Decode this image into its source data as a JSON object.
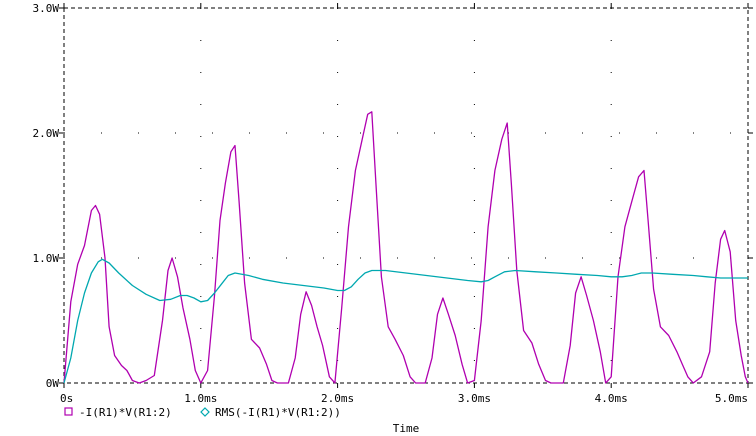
{
  "chart_data": {
    "type": "line",
    "xlabel": "Time",
    "ylabel": "",
    "xlim": [
      0,
      5.0
    ],
    "ylim": [
      0,
      3.0
    ],
    "x_unit": "ms",
    "y_unit": "W",
    "x_ticks": [
      {
        "value": 0,
        "label": "0s"
      },
      {
        "value": 1.0,
        "label": "1.0ms"
      },
      {
        "value": 2.0,
        "label": "2.0ms"
      },
      {
        "value": 3.0,
        "label": "3.0ms"
      },
      {
        "value": 4.0,
        "label": "4.0ms"
      },
      {
        "value": 5.0,
        "label": "5.0ms"
      }
    ],
    "y_ticks": [
      {
        "value": 0,
        "label": "0W"
      },
      {
        "value": 1.0,
        "label": "1.0W"
      },
      {
        "value": 2.0,
        "label": "2.0W"
      },
      {
        "value": 3.0,
        "label": "3.0W"
      }
    ],
    "grid": "dotted",
    "legend_position": "bottom-left",
    "series": [
      {
        "name": "-I(R1)*V(R1:2)",
        "color": "#b000b0",
        "marker": "square",
        "points": [
          [
            0,
            0
          ],
          [
            0.05,
            0.65
          ],
          [
            0.1,
            0.95
          ],
          [
            0.15,
            1.1
          ],
          [
            0.2,
            1.38
          ],
          [
            0.23,
            1.42
          ],
          [
            0.26,
            1.35
          ],
          [
            0.3,
            1.0
          ],
          [
            0.33,
            0.45
          ],
          [
            0.37,
            0.22
          ],
          [
            0.42,
            0.14
          ],
          [
            0.46,
            0.1
          ],
          [
            0.5,
            0.02
          ],
          [
            0.55,
            0
          ],
          [
            0.6,
            0.02
          ],
          [
            0.66,
            0.06
          ],
          [
            0.72,
            0.5
          ],
          [
            0.76,
            0.9
          ],
          [
            0.79,
            1.0
          ],
          [
            0.83,
            0.85
          ],
          [
            0.87,
            0.6
          ],
          [
            0.92,
            0.35
          ],
          [
            0.96,
            0.1
          ],
          [
            1.0,
            0
          ],
          [
            1.05,
            0.1
          ],
          [
            1.1,
            0.7
          ],
          [
            1.14,
            1.3
          ],
          [
            1.18,
            1.6
          ],
          [
            1.22,
            1.85
          ],
          [
            1.25,
            1.9
          ],
          [
            1.28,
            1.45
          ],
          [
            1.32,
            0.8
          ],
          [
            1.37,
            0.35
          ],
          [
            1.43,
            0.28
          ],
          [
            1.48,
            0.15
          ],
          [
            1.52,
            0.02
          ],
          [
            1.56,
            0
          ],
          [
            1.64,
            0
          ],
          [
            1.69,
            0.2
          ],
          [
            1.73,
            0.55
          ],
          [
            1.77,
            0.73
          ],
          [
            1.81,
            0.62
          ],
          [
            1.85,
            0.45
          ],
          [
            1.89,
            0.3
          ],
          [
            1.94,
            0.05
          ],
          [
            1.98,
            0
          ],
          [
            2.03,
            0.6
          ],
          [
            2.08,
            1.25
          ],
          [
            2.13,
            1.7
          ],
          [
            2.18,
            1.95
          ],
          [
            2.22,
            2.15
          ],
          [
            2.25,
            2.17
          ],
          [
            2.28,
            1.6
          ],
          [
            2.32,
            0.85
          ],
          [
            2.37,
            0.45
          ],
          [
            2.42,
            0.35
          ],
          [
            2.48,
            0.22
          ],
          [
            2.53,
            0.05
          ],
          [
            2.57,
            0
          ],
          [
            2.64,
            0
          ],
          [
            2.69,
            0.2
          ],
          [
            2.73,
            0.55
          ],
          [
            2.77,
            0.68
          ],
          [
            2.81,
            0.55
          ],
          [
            2.86,
            0.38
          ],
          [
            2.91,
            0.15
          ],
          [
            2.95,
            0
          ],
          [
            3.0,
            0.02
          ],
          [
            3.05,
            0.5
          ],
          [
            3.1,
            1.25
          ],
          [
            3.15,
            1.7
          ],
          [
            3.2,
            1.95
          ],
          [
            3.24,
            2.08
          ],
          [
            3.27,
            1.6
          ],
          [
            3.31,
            0.9
          ],
          [
            3.36,
            0.42
          ],
          [
            3.42,
            0.32
          ],
          [
            3.47,
            0.15
          ],
          [
            3.52,
            0.02
          ],
          [
            3.56,
            0
          ],
          [
            3.65,
            0
          ],
          [
            3.7,
            0.3
          ],
          [
            3.74,
            0.72
          ],
          [
            3.78,
            0.85
          ],
          [
            3.82,
            0.7
          ],
          [
            3.87,
            0.5
          ],
          [
            3.92,
            0.25
          ],
          [
            3.96,
            0
          ],
          [
            4.0,
            0.05
          ],
          [
            4.05,
            0.85
          ],
          [
            4.1,
            1.25
          ],
          [
            4.15,
            1.45
          ],
          [
            4.2,
            1.65
          ],
          [
            4.24,
            1.7
          ],
          [
            4.27,
            1.3
          ],
          [
            4.31,
            0.75
          ],
          [
            4.36,
            0.45
          ],
          [
            4.42,
            0.38
          ],
          [
            4.48,
            0.25
          ],
          [
            4.52,
            0.15
          ],
          [
            4.56,
            0.05
          ],
          [
            4.6,
            0
          ],
          [
            4.66,
            0.05
          ],
          [
            4.72,
            0.25
          ],
          [
            4.76,
            0.8
          ],
          [
            4.8,
            1.15
          ],
          [
            4.83,
            1.22
          ],
          [
            4.87,
            1.05
          ],
          [
            4.91,
            0.5
          ],
          [
            4.95,
            0.22
          ],
          [
            4.98,
            0.05
          ],
          [
            5.0,
            0
          ]
        ]
      },
      {
        "name": "RMS(-I(R1)*V(R1:2))",
        "color": "#00a8b0",
        "marker": "diamond",
        "points": [
          [
            0,
            0
          ],
          [
            0.05,
            0.2
          ],
          [
            0.1,
            0.5
          ],
          [
            0.15,
            0.72
          ],
          [
            0.2,
            0.88
          ],
          [
            0.25,
            0.97
          ],
          [
            0.28,
            0.99
          ],
          [
            0.33,
            0.96
          ],
          [
            0.4,
            0.88
          ],
          [
            0.5,
            0.78
          ],
          [
            0.6,
            0.71
          ],
          [
            0.7,
            0.66
          ],
          [
            0.78,
            0.67
          ],
          [
            0.85,
            0.7
          ],
          [
            0.9,
            0.7
          ],
          [
            0.95,
            0.68
          ],
          [
            1.0,
            0.65
          ],
          [
            1.05,
            0.66
          ],
          [
            1.1,
            0.72
          ],
          [
            1.15,
            0.79
          ],
          [
            1.2,
            0.86
          ],
          [
            1.25,
            0.88
          ],
          [
            1.35,
            0.86
          ],
          [
            1.45,
            0.83
          ],
          [
            1.6,
            0.8
          ],
          [
            1.75,
            0.78
          ],
          [
            1.9,
            0.76
          ],
          [
            2.0,
            0.74
          ],
          [
            2.05,
            0.74
          ],
          [
            2.1,
            0.77
          ],
          [
            2.15,
            0.83
          ],
          [
            2.2,
            0.88
          ],
          [
            2.25,
            0.9
          ],
          [
            2.35,
            0.9
          ],
          [
            2.5,
            0.88
          ],
          [
            2.65,
            0.86
          ],
          [
            2.8,
            0.84
          ],
          [
            2.95,
            0.82
          ],
          [
            3.05,
            0.81
          ],
          [
            3.1,
            0.82
          ],
          [
            3.15,
            0.85
          ],
          [
            3.22,
            0.89
          ],
          [
            3.3,
            0.9
          ],
          [
            3.45,
            0.89
          ],
          [
            3.6,
            0.88
          ],
          [
            3.75,
            0.87
          ],
          [
            3.9,
            0.86
          ],
          [
            4.0,
            0.85
          ],
          [
            4.08,
            0.85
          ],
          [
            4.15,
            0.86
          ],
          [
            4.22,
            0.88
          ],
          [
            4.3,
            0.88
          ],
          [
            4.45,
            0.87
          ],
          [
            4.6,
            0.86
          ],
          [
            4.7,
            0.85
          ],
          [
            4.8,
            0.84
          ],
          [
            4.9,
            0.84
          ],
          [
            5.0,
            0.84
          ]
        ]
      }
    ]
  }
}
